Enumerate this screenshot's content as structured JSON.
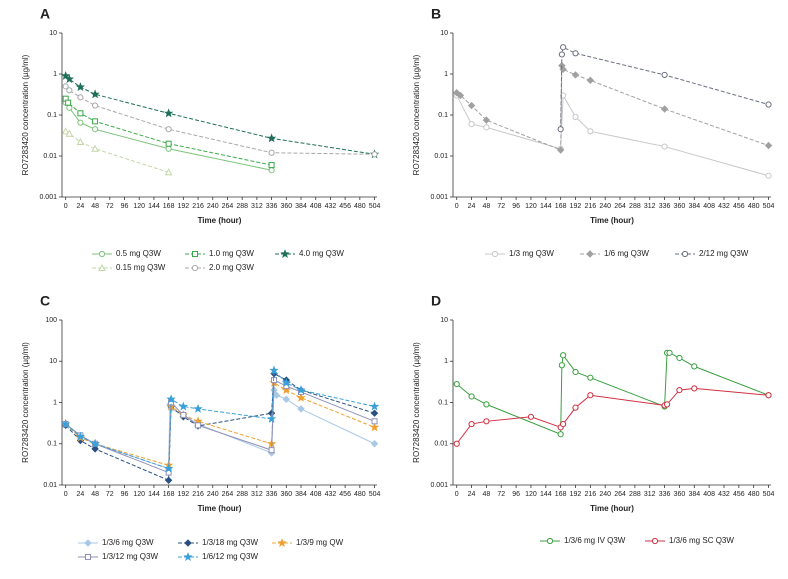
{
  "chart_data": [
    {
      "type": "line",
      "panel": "A",
      "xlabel": "Time (hour)",
      "ylabel": "RO7283420 concentration (µg/ml)",
      "log_y": true,
      "xlim": [
        -6,
        508
      ],
      "ylim": [
        0.001,
        10
      ],
      "xticks": [
        0,
        24,
        48,
        72,
        96,
        120,
        144,
        168,
        192,
        216,
        240,
        264,
        288,
        312,
        336,
        360,
        384,
        408,
        432,
        456,
        480,
        504
      ],
      "yticks": [
        0.001,
        0.01,
        0.1,
        1,
        10
      ],
      "series": [
        {
          "name": "0.5 mg Q3W",
          "color": "#7cc47c",
          "marker": "circle",
          "dashed": false,
          "x": [
            0,
            6,
            24,
            48,
            168,
            336
          ],
          "values": [
            0.2,
            0.15,
            0.065,
            0.045,
            0.015,
            0.0045
          ]
        },
        {
          "name": "1.0 mg Q3W",
          "color": "#3aa84a",
          "marker": "square",
          "dashed": true,
          "x": [
            0,
            4,
            24,
            48,
            168,
            336
          ],
          "values": [
            0.25,
            0.2,
            0.11,
            0.07,
            0.02,
            0.006
          ]
        },
        {
          "name": "4.0 mg Q3W",
          "color": "#1f6e5a",
          "marker": "star",
          "dashed": true,
          "x": [
            0,
            6,
            24,
            48,
            168,
            336,
            504
          ],
          "values": [
            0.9,
            0.75,
            0.48,
            0.32,
            0.11,
            0.027,
            0.011
          ]
        },
        {
          "name": "0.15 mg Q3W",
          "color": "#c3d6a8",
          "marker": "triangle",
          "dashed": true,
          "x": [
            0,
            6,
            24,
            48,
            168
          ],
          "values": [
            0.04,
            0.035,
            0.022,
            0.015,
            0.004
          ]
        },
        {
          "name": "2.0 mg Q3W",
          "color": "#a8a8a8",
          "marker": "circle",
          "dashed": true,
          "x": [
            0,
            6,
            24,
            48,
            168,
            336,
            504
          ],
          "values": [
            0.5,
            0.4,
            0.27,
            0.17,
            0.045,
            0.012,
            0.011
          ]
        }
      ]
    },
    {
      "type": "line",
      "panel": "B",
      "xlabel": "Time (hour)",
      "ylabel": "RO7283420 concentration (µg/ml)",
      "log_y": true,
      "xlim": [
        -6,
        508
      ],
      "ylim": [
        0.001,
        10
      ],
      "xticks": [
        0,
        24,
        48,
        72,
        96,
        120,
        144,
        168,
        192,
        216,
        240,
        264,
        288,
        312,
        336,
        360,
        384,
        408,
        432,
        456,
        480,
        504
      ],
      "yticks": [
        0.001,
        0.01,
        0.1,
        1,
        10
      ],
      "series": [
        {
          "name": "1/3 mg Q3W",
          "color": "#c8c8c8",
          "marker": "circle",
          "dashed": false,
          "x": [
            0,
            24,
            48,
            168,
            172,
            192,
            216,
            336,
            504
          ],
          "values": [
            0.3,
            0.06,
            0.05,
            0.015,
            0.3,
            0.09,
            0.04,
            0.017,
            0.0033
          ]
        },
        {
          "name": "1/6 mg Q3W",
          "color": "#a0a0a0",
          "marker": "diamond",
          "dashed": true,
          "x": [
            0,
            6,
            24,
            48,
            168,
            170,
            172,
            192,
            216,
            336,
            504
          ],
          "values": [
            0.35,
            0.3,
            0.17,
            0.075,
            0.014,
            1.6,
            1.3,
            0.95,
            0.7,
            0.14,
            0.018
          ]
        },
        {
          "name": "2/12 mg Q3W",
          "color": "#6a7080",
          "marker": "circle",
          "dashed": true,
          "x": [
            168,
            170,
            172,
            192,
            336,
            504
          ],
          "values": [
            0.045,
            3,
            4.5,
            3.2,
            0.95,
            0.18
          ]
        }
      ]
    },
    {
      "type": "line",
      "panel": "C",
      "xlabel": "Time (hour)",
      "ylabel": "RO7283420 concentration (µg/ml)",
      "log_y": true,
      "xlim": [
        -6,
        508
      ],
      "ylim": [
        0.01,
        100
      ],
      "xticks": [
        0,
        24,
        48,
        72,
        96,
        120,
        144,
        168,
        192,
        216,
        240,
        264,
        288,
        312,
        336,
        360,
        384,
        408,
        432,
        456,
        480,
        504
      ],
      "yticks": [
        0.01,
        0.1,
        1,
        10,
        100
      ],
      "series": [
        {
          "name": "1/3/6 mg Q3W",
          "color": "#a8c8e8",
          "marker": "diamond",
          "dashed": false,
          "x": [
            0,
            24,
            48,
            168,
            170,
            172,
            192,
            216,
            336,
            340,
            344,
            360,
            384,
            504
          ],
          "values": [
            0.3,
            0.15,
            0.1,
            0.025,
            0.9,
            0.7,
            0.5,
            0.3,
            0.06,
            2,
            1.5,
            1.2,
            0.7,
            0.1
          ]
        },
        {
          "name": "1/3/18 mg Q3W",
          "color": "#2a5080",
          "marker": "diamond",
          "dashed": true,
          "x": [
            0,
            24,
            48,
            168,
            172,
            192,
            216,
            336,
            340,
            360,
            384,
            504
          ],
          "values": [
            0.28,
            0.12,
            0.075,
            0.013,
            0.8,
            0.45,
            0.27,
            0.55,
            5,
            3.5,
            2,
            0.55
          ]
        },
        {
          "name": "1/3/9 mg QW",
          "color": "#f0a030",
          "marker": "star",
          "dashed": true,
          "x": [
            0,
            24,
            48,
            168,
            172,
            192,
            216,
            336,
            340,
            360,
            384,
            504
          ],
          "values": [
            0.3,
            0.14,
            0.1,
            0.03,
            0.8,
            0.5,
            0.35,
            0.1,
            3,
            2,
            1.3,
            0.25
          ]
        },
        {
          "name": "1/3/12 mg Q3W",
          "color": "#9090b8",
          "marker": "square",
          "dashed": false,
          "x": [
            0,
            24,
            48,
            168,
            172,
            192,
            216,
            336,
            340,
            360,
            384,
            504
          ],
          "values": [
            0.3,
            0.16,
            0.1,
            0.02,
            1,
            0.5,
            0.28,
            0.07,
            3.5,
            2.5,
            1.8,
            0.35
          ]
        },
        {
          "name": "1/6/12 mg Q3W",
          "color": "#3aa0d8",
          "marker": "star",
          "dashed": true,
          "x": [
            0,
            24,
            48,
            168,
            172,
            192,
            216,
            336,
            340,
            360,
            384,
            504
          ],
          "values": [
            0.3,
            0.15,
            0.1,
            0.025,
            1.2,
            0.8,
            0.7,
            0.4,
            6,
            3,
            2,
            0.8
          ]
        }
      ]
    },
    {
      "type": "line",
      "panel": "D",
      "xlabel": "Time (hour)",
      "ylabel": "RO7283420 concentration (µg/ml)",
      "log_y": true,
      "xlim": [
        -6,
        508
      ],
      "ylim": [
        0.001,
        10
      ],
      "xticks": [
        0,
        24,
        48,
        72,
        96,
        120,
        144,
        168,
        192,
        216,
        240,
        264,
        288,
        312,
        336,
        360,
        384,
        408,
        432,
        456,
        480,
        504
      ],
      "yticks": [
        0.001,
        0.01,
        0.1,
        1,
        10
      ],
      "series": [
        {
          "name": "1/3/6 mg IV Q3W",
          "color": "#3aa040",
          "marker": "circle",
          "dashed": false,
          "x": [
            0,
            24,
            48,
            168,
            170,
            172,
            192,
            216,
            336,
            340,
            344,
            360,
            384,
            504
          ],
          "values": [
            0.28,
            0.14,
            0.09,
            0.017,
            0.8,
            1.4,
            0.55,
            0.4,
            0.08,
            1.6,
            1.6,
            1.2,
            0.75,
            0.15
          ]
        },
        {
          "name": "1/3/6 mg SC Q3W",
          "color": "#d03040",
          "marker": "circle",
          "dashed": false,
          "x": [
            0,
            24,
            48,
            120,
            168,
            172,
            192,
            216,
            336,
            340,
            360,
            384,
            504
          ],
          "values": [
            0.01,
            0.03,
            0.035,
            0.045,
            0.025,
            0.03,
            0.075,
            0.15,
            0.085,
            0.09,
            0.2,
            0.22,
            0.15
          ]
        }
      ]
    }
  ]
}
